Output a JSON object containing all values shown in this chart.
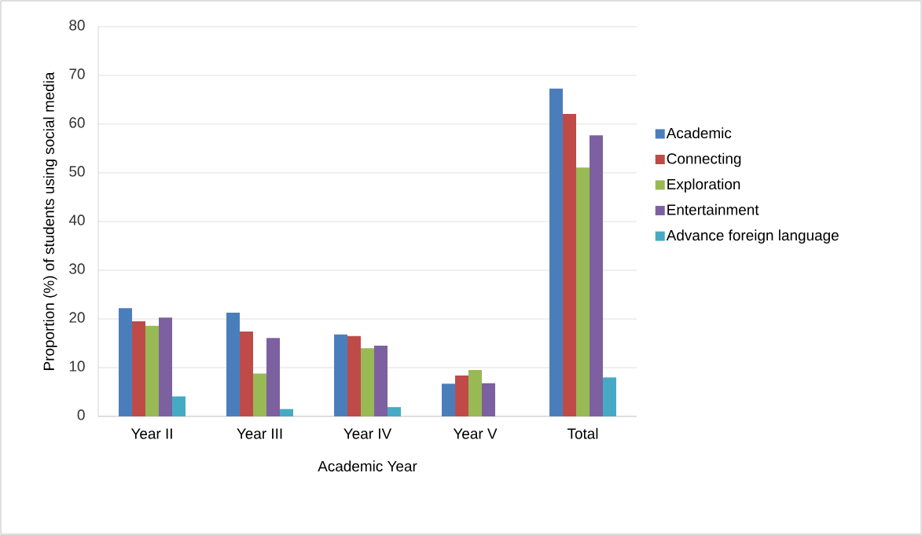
{
  "chart_data": {
    "type": "bar",
    "xlabel": "Academic Year",
    "ylabel": "Proportion (%) of students using social media",
    "categories": [
      "Year II",
      "Year III",
      "Year IV",
      "Year V",
      "Total"
    ],
    "series": [
      {
        "name": "Academic",
        "color": "#4a7ebb",
        "values": [
          22.2,
          21.3,
          16.8,
          6.7,
          67.3
        ]
      },
      {
        "name": "Connecting",
        "color": "#be4b48",
        "values": [
          19.5,
          17.4,
          16.5,
          8.4,
          62.1
        ]
      },
      {
        "name": "Exploration",
        "color": "#98b954",
        "values": [
          18.6,
          8.8,
          14.0,
          9.5,
          51.1
        ]
      },
      {
        "name": "Entertainment",
        "color": "#7d60a0",
        "values": [
          20.3,
          16.1,
          14.5,
          6.8,
          57.7
        ]
      },
      {
        "name": "Advance foreign language",
        "color": "#46aac5",
        "values": [
          4.1,
          1.5,
          1.9,
          null,
          8.0
        ]
      }
    ],
    "ylim": [
      0,
      80
    ],
    "yticks": [
      0,
      10,
      20,
      30,
      40,
      50,
      60,
      70,
      80
    ],
    "grid": "y",
    "legend": "right"
  }
}
